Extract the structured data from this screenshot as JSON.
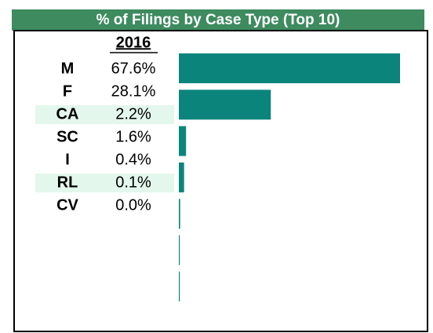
{
  "chart_data": {
    "type": "bar",
    "title": "% of Filings by Case Type (Top 10)",
    "column_header": "2016",
    "categories": [
      "M",
      "F",
      "CA",
      "SC",
      "I",
      "RL",
      "CV"
    ],
    "values": [
      67.6,
      28.1,
      2.2,
      1.6,
      0.4,
      0.1,
      0.0
    ],
    "value_labels": [
      "67.6%",
      "28.1%",
      "2.2%",
      "1.6%",
      "0.4%",
      "0.1%",
      "0.0%"
    ],
    "color": "#0b857c"
  }
}
